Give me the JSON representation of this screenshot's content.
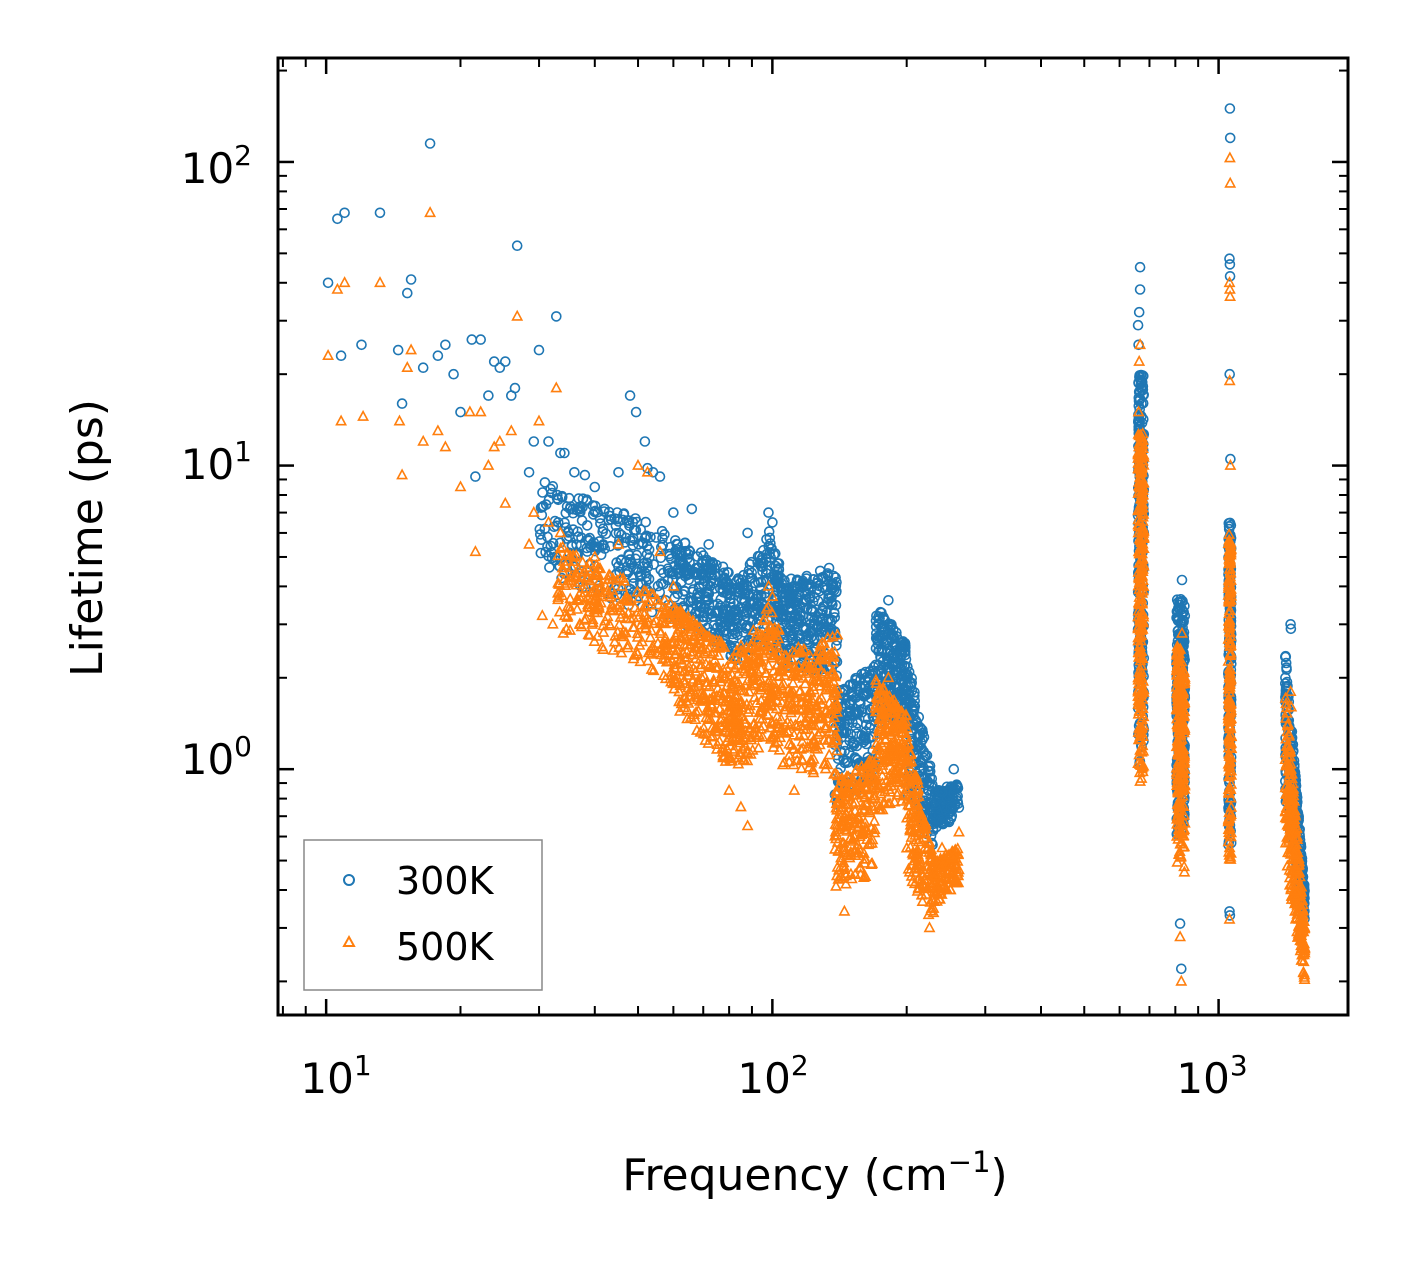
{
  "chart_data": {
    "type": "scatter",
    "title": "",
    "xlabel": "Frequency (cm",
    "xlabel_sup": "−1",
    "xlabel_end": ")",
    "ylabel": "Lifetime (ps)",
    "xscale": "log",
    "yscale": "log",
    "xlim": [
      7.8,
      1950
    ],
    "ylim": [
      0.155,
      220
    ],
    "x_ticks": [
      {
        "base": "10",
        "exp": "1",
        "value": 10
      },
      {
        "base": "10",
        "exp": "2",
        "value": 100
      },
      {
        "base": "10",
        "exp": "3",
        "value": 1000
      }
    ],
    "y_ticks": [
      {
        "base": "10",
        "exp": "0",
        "value": 1
      },
      {
        "base": "10",
        "exp": "1",
        "value": 10
      },
      {
        "base": "10",
        "exp": "2",
        "value": 100
      }
    ],
    "legend_position": "lower-left",
    "series": [
      {
        "name": "300K",
        "marker": "circle",
        "color": "#1f77b4",
        "points": [
          [
            10.1,
            40
          ],
          [
            10.6,
            65
          ],
          [
            10.8,
            23
          ],
          [
            11.0,
            68
          ],
          [
            12.0,
            25
          ],
          [
            13.2,
            68
          ],
          [
            14.5,
            24
          ],
          [
            14.8,
            16
          ],
          [
            15.2,
            37
          ],
          [
            15.5,
            41
          ],
          [
            16.5,
            21
          ],
          [
            17.1,
            115
          ],
          [
            17.8,
            23
          ],
          [
            18.5,
            25
          ],
          [
            19.3,
            20
          ],
          [
            20.0,
            15
          ],
          [
            21.2,
            26
          ],
          [
            21.6,
            9.2
          ],
          [
            22.2,
            26
          ],
          [
            23.1,
            17
          ],
          [
            23.8,
            22
          ],
          [
            24.5,
            21
          ],
          [
            25.2,
            22
          ],
          [
            26.0,
            17
          ],
          [
            26.5,
            18
          ],
          [
            26.8,
            53
          ],
          [
            28.5,
            9.5
          ],
          [
            29.2,
            12
          ],
          [
            30.0,
            24
          ],
          [
            31.5,
            12
          ],
          [
            32.8,
            31
          ],
          [
            33.5,
            11
          ],
          [
            34.2,
            11
          ],
          [
            36.0,
            9.5
          ],
          [
            38.0,
            9.3
          ],
          [
            40.0,
            8.5
          ],
          [
            45.2,
            9.5
          ],
          [
            48.0,
            17
          ],
          [
            49.5,
            15
          ],
          [
            51.8,
            12
          ],
          [
            52.5,
            9.8
          ],
          [
            54.0,
            9.5
          ],
          [
            56.0,
            9.2
          ],
          [
            60.0,
            7.0
          ],
          [
            66.0,
            7.2
          ],
          [
            72.0,
            5.5
          ],
          [
            98.0,
            7.0
          ],
          [
            100.0,
            6.5
          ],
          [
            88.0,
            6.0
          ],
          [
            128.0,
            4.5
          ],
          [
            134.0,
            4.6
          ],
          [
            182.0,
            3.6
          ],
          [
            255.0,
            1.0
          ],
          [
            667.0,
            45
          ],
          [
            667.0,
            38
          ],
          [
            664.0,
            32
          ],
          [
            660.0,
            29
          ],
          [
            662.0,
            25
          ],
          [
            820.0,
            0.31
          ],
          [
            825.0,
            0.22
          ],
          [
            828.0,
            4.2
          ],
          [
            1060.0,
            150
          ],
          [
            1062.0,
            120
          ],
          [
            1058.0,
            48
          ],
          [
            1060.0,
            46
          ],
          [
            1061.0,
            42
          ],
          [
            1059.0,
            20
          ],
          [
            1063.0,
            10.5
          ],
          [
            1058.0,
            0.34
          ],
          [
            1060.0,
            0.33
          ],
          [
            1450.0,
            3.0
          ],
          [
            1452.0,
            2.9
          ]
        ],
        "bands": [
          {
            "x_from": 30,
            "x_to": 60,
            "y_lo_from": 4.5,
            "y_lo_to": 3.0,
            "y_hi_from": 9.0,
            "y_hi_to": 6.0,
            "n": 260
          },
          {
            "x_from": 60,
            "x_to": 80,
            "y_lo_from": 3.0,
            "y_lo_to": 2.5,
            "y_hi_from": 6.0,
            "y_hi_to": 4.5,
            "n": 220
          },
          {
            "x_from": 80,
            "x_to": 96,
            "y_lo_from": 2.2,
            "y_lo_to": 2.6,
            "y_hi_from": 4.0,
            "y_hi_to": 5.5,
            "n": 160
          },
          {
            "x_from": 96,
            "x_to": 105,
            "y_lo_from": 2.6,
            "y_lo_to": 2.4,
            "y_hi_from": 6.8,
            "y_hi_to": 4.5,
            "n": 90
          },
          {
            "x_from": 105,
            "x_to": 140,
            "y_lo_from": 2.2,
            "y_lo_to": 2.0,
            "y_hi_from": 4.2,
            "y_hi_to": 4.5,
            "n": 260
          },
          {
            "x_from": 138,
            "x_to": 170,
            "y_lo_from": 0.75,
            "y_lo_to": 0.9,
            "y_hi_from": 1.8,
            "y_hi_to": 2.2,
            "n": 200
          },
          {
            "x_from": 170,
            "x_to": 200,
            "y_lo_from": 1.2,
            "y_lo_to": 1.4,
            "y_hi_from": 3.5,
            "y_hi_to": 2.6,
            "n": 220
          },
          {
            "x_from": 200,
            "x_to": 230,
            "y_lo_from": 0.8,
            "y_lo_to": 0.55,
            "y_hi_from": 2.4,
            "y_hi_to": 0.9,
            "n": 160
          },
          {
            "x_from": 230,
            "x_to": 262,
            "y_lo_from": 0.62,
            "y_lo_to": 0.7,
            "y_hi_from": 0.85,
            "y_hi_to": 0.9,
            "n": 110
          },
          {
            "x_from": 660,
            "x_to": 680,
            "y_lo_from": 1.0,
            "y_lo_to": 1.0,
            "y_hi_from": 20.0,
            "y_hi_to": 20.0,
            "n": 260
          },
          {
            "x_from": 805,
            "x_to": 840,
            "y_lo_from": 0.6,
            "y_lo_to": 0.6,
            "y_hi_from": 3.8,
            "y_hi_to": 3.5,
            "n": 260
          },
          {
            "x_from": 1052,
            "x_to": 1068,
            "y_lo_from": 0.55,
            "y_lo_to": 0.55,
            "y_hi_from": 6.5,
            "y_hi_to": 6.5,
            "n": 180
          },
          {
            "x_from": 1410,
            "x_to": 1560,
            "y_lo_from": 0.8,
            "y_lo_to": 0.3,
            "y_hi_from": 2.5,
            "y_hi_to": 0.4,
            "n": 300
          }
        ]
      },
      {
        "name": "500K",
        "marker": "triangle",
        "color": "#ff7f0e",
        "points": [
          [
            10.1,
            23
          ],
          [
            10.6,
            38
          ],
          [
            10.8,
            14
          ],
          [
            11.0,
            40
          ],
          [
            12.1,
            14.5
          ],
          [
            13.2,
            40
          ],
          [
            14.6,
            14
          ],
          [
            14.8,
            9.3
          ],
          [
            15.5,
            24
          ],
          [
            15.2,
            21
          ],
          [
            16.5,
            12
          ],
          [
            17.1,
            68
          ],
          [
            17.8,
            13
          ],
          [
            18.5,
            11.5
          ],
          [
            20.0,
            8.5
          ],
          [
            21.0,
            15
          ],
          [
            21.6,
            5.2
          ],
          [
            22.2,
            15
          ],
          [
            23.1,
            10
          ],
          [
            23.8,
            11.5
          ],
          [
            24.5,
            12
          ],
          [
            25.2,
            7.5
          ],
          [
            26.0,
            13
          ],
          [
            26.8,
            31
          ],
          [
            28.5,
            5.5
          ],
          [
            29.2,
            7.0
          ],
          [
            30.0,
            14
          ],
          [
            31.5,
            6.5
          ],
          [
            32.8,
            18
          ],
          [
            33.5,
            6.0
          ],
          [
            30.5,
            3.2
          ],
          [
            32.2,
            3.0
          ],
          [
            34.0,
            2.8
          ],
          [
            36.0,
            5.0
          ],
          [
            40.0,
            5.0
          ],
          [
            45.2,
            5.5
          ],
          [
            50.0,
            10
          ],
          [
            52.5,
            9.5
          ],
          [
            56.0,
            5.2
          ],
          [
            60.0,
            4.0
          ],
          [
            98.0,
            4.0
          ],
          [
            100.0,
            3.7
          ],
          [
            80.0,
            0.85
          ],
          [
            85.0,
            0.75
          ],
          [
            88.0,
            0.65
          ],
          [
            112.0,
            0.85
          ],
          [
            140.0,
            0.95
          ],
          [
            145.0,
            0.34
          ],
          [
            182.0,
            2.0
          ],
          [
            225.0,
            0.3
          ],
          [
            240.0,
            0.55
          ],
          [
            262.0,
            0.62
          ],
          [
            667.0,
            25
          ],
          [
            664.0,
            22
          ],
          [
            662.0,
            15
          ],
          [
            820.0,
            0.28
          ],
          [
            825.0,
            0.2
          ],
          [
            828.0,
            2.8
          ],
          [
            1060.0,
            103
          ],
          [
            1062.0,
            85
          ],
          [
            1058.0,
            40
          ],
          [
            1060.0,
            38
          ],
          [
            1061.0,
            36
          ],
          [
            1059.0,
            19
          ],
          [
            1063.0,
            10
          ],
          [
            1058.0,
            0.32
          ],
          [
            1450.0,
            1.8
          ],
          [
            1455.0,
            1.6
          ]
        ],
        "bands": [
          {
            "x_from": 33,
            "x_to": 60,
            "y_lo_from": 3.0,
            "y_lo_to": 1.8,
            "y_hi_from": 5.5,
            "y_hi_to": 3.5,
            "n": 260
          },
          {
            "x_from": 60,
            "x_to": 80,
            "y_lo_from": 1.6,
            "y_lo_to": 1.0,
            "y_hi_from": 3.5,
            "y_hi_to": 2.5,
            "n": 260
          },
          {
            "x_from": 80,
            "x_to": 96,
            "y_lo_from": 0.9,
            "y_lo_to": 1.2,
            "y_hi_from": 2.3,
            "y_hi_to": 3.2,
            "n": 200
          },
          {
            "x_from": 96,
            "x_to": 105,
            "y_lo_from": 1.2,
            "y_lo_to": 1.1,
            "y_hi_from": 3.8,
            "y_hi_to": 2.8,
            "n": 100
          },
          {
            "x_from": 105,
            "x_to": 140,
            "y_lo_from": 1.0,
            "y_lo_to": 0.9,
            "y_hi_from": 2.4,
            "y_hi_to": 2.8,
            "n": 260
          },
          {
            "x_from": 138,
            "x_to": 170,
            "y_lo_from": 0.4,
            "y_lo_to": 0.45,
            "y_hi_from": 0.9,
            "y_hi_to": 1.1,
            "n": 220
          },
          {
            "x_from": 170,
            "x_to": 200,
            "y_lo_from": 0.7,
            "y_lo_to": 0.8,
            "y_hi_from": 2.0,
            "y_hi_to": 1.5,
            "n": 220
          },
          {
            "x_from": 200,
            "x_to": 230,
            "y_lo_from": 0.45,
            "y_lo_to": 0.3,
            "y_hi_from": 1.4,
            "y_hi_to": 0.5,
            "n": 160
          },
          {
            "x_from": 230,
            "x_to": 262,
            "y_lo_from": 0.35,
            "y_lo_to": 0.42,
            "y_hi_from": 0.5,
            "y_hi_to": 0.55,
            "n": 110
          },
          {
            "x_from": 660,
            "x_to": 680,
            "y_lo_from": 0.9,
            "y_lo_to": 0.9,
            "y_hi_from": 13.0,
            "y_hi_to": 13.0,
            "n": 260
          },
          {
            "x_from": 805,
            "x_to": 840,
            "y_lo_from": 0.45,
            "y_lo_to": 0.45,
            "y_hi_from": 2.6,
            "y_hi_to": 2.4,
            "n": 260
          },
          {
            "x_from": 1052,
            "x_to": 1068,
            "y_lo_from": 0.5,
            "y_lo_to": 0.5,
            "y_hi_from": 6.0,
            "y_hi_to": 6.0,
            "n": 180
          },
          {
            "x_from": 1410,
            "x_to": 1560,
            "y_lo_from": 0.5,
            "y_lo_to": 0.2,
            "y_hi_from": 1.9,
            "y_hi_to": 0.3,
            "n": 300
          }
        ]
      }
    ]
  }
}
